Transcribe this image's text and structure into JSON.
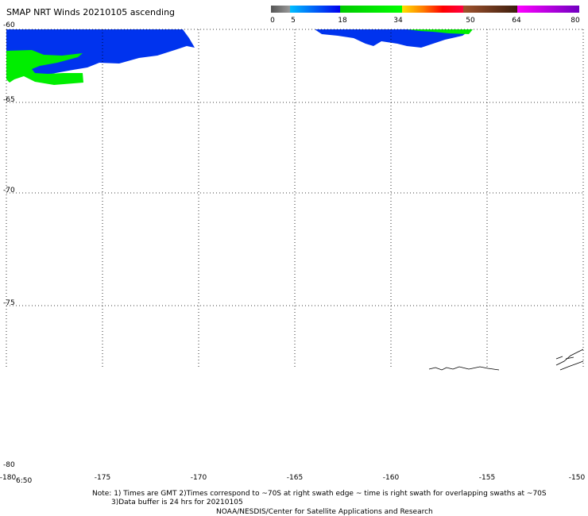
{
  "title": "SMAP NRT Winds 20210105 ascending",
  "colorbar": {
    "labels": [
      "0",
      "5",
      "18",
      "34",
      "50",
      "64",
      "80"
    ],
    "segments": [
      {
        "from": 0,
        "to": 5,
        "colors": [
          "#555555",
          "#999999"
        ]
      },
      {
        "from": 5,
        "to": 18,
        "colors": [
          "#00bfff",
          "#0000ee"
        ]
      },
      {
        "from": 18,
        "to": 34,
        "colors": [
          "#00c800",
          "#00ff00"
        ]
      },
      {
        "from": 34,
        "to": 50,
        "colors": [
          "#ffe000",
          "#ff8000",
          "#ff0000",
          "#ff0040"
        ]
      },
      {
        "from": 50,
        "to": 64,
        "colors": [
          "#a0522d",
          "#3d1e0e"
        ]
      },
      {
        "from": 64,
        "to": 80,
        "colors": [
          "#ff00ff",
          "#7000c0"
        ]
      }
    ]
  },
  "map": {
    "lat_labels": [
      "-60",
      "-65",
      "-70",
      "-75",
      "-80"
    ],
    "lon_labels": [
      "-180",
      "-175",
      "-170",
      "-165",
      "-160",
      "-155",
      "-150"
    ],
    "lat_range": [
      -80,
      -60
    ],
    "lon_range": [
      -180,
      -150
    ],
    "wind_colors": {
      "blue": "#0033ee",
      "green": "#00ee00"
    }
  },
  "time_label": "6:50",
  "notes": [
    "Note: 1) Times are GMT 2)Times correspond to ~70S at right swath edge ~ time is right swath for overlapping swaths at ~70S",
    "3)Data buffer is 24 hrs for 20210105",
    "NOAA/NESDIS/Center for Satellite Applications and Research"
  ]
}
